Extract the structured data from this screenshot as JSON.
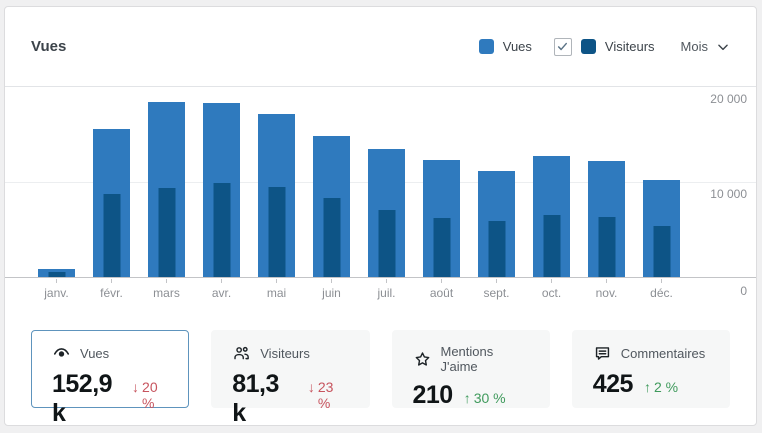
{
  "header": {
    "title": "Vues"
  },
  "legend": {
    "vues_label": "Vues",
    "visiteurs_label": "Visiteurs",
    "visiteurs_checked": true,
    "period_label": "Mois"
  },
  "colors": {
    "vues": "#2f7abe",
    "visiteurs": "#0d5486",
    "delta_down": "#c7545e",
    "delta_up": "#3f9a5c",
    "selected_card_border": "#5e94bd"
  },
  "chart_data": {
    "type": "bar",
    "categories": [
      "janv.",
      "févr.",
      "mars",
      "avr.",
      "mai",
      "juin",
      "juil.",
      "août",
      "sept.",
      "oct.",
      "nov.",
      "déc."
    ],
    "series": [
      {
        "name": "Vues",
        "color": "#2f7abe",
        "values": [
          800,
          15600,
          18400,
          18300,
          17200,
          14800,
          13500,
          12300,
          11200,
          12700,
          12200,
          10200
        ]
      },
      {
        "name": "Visiteurs",
        "color": "#0d5486",
        "values": [
          550,
          8700,
          9400,
          9900,
          9500,
          8300,
          7100,
          6200,
          5900,
          6500,
          6300,
          5400
        ]
      }
    ],
    "title": "Vues",
    "xlabel": "",
    "ylabel": "",
    "ylim": [
      0,
      20000
    ],
    "yticks": [
      "20 000",
      "10 000",
      "0"
    ],
    "grid": true,
    "legend_position": "top-right"
  },
  "summary_cards": [
    {
      "id": "vues",
      "icon": "eye-icon",
      "label": "Vues",
      "value": "152,9 k",
      "arrow": "↓",
      "delta": "20 %",
      "direction": "down",
      "selected": true
    },
    {
      "id": "visiteurs",
      "icon": "people-icon",
      "label": "Visiteurs",
      "value": "81,3 k",
      "arrow": "↓",
      "delta": "23 %",
      "direction": "down",
      "selected": false
    },
    {
      "id": "mentions",
      "icon": "star-icon",
      "label": "Mentions J'aime",
      "value": "210",
      "arrow": "↑",
      "delta": "30 %",
      "direction": "up",
      "selected": false
    },
    {
      "id": "commentaires",
      "icon": "comment-icon",
      "label": "Commentaires",
      "value": "425",
      "arrow": "↑",
      "delta": "2 %",
      "direction": "up",
      "selected": false
    }
  ]
}
